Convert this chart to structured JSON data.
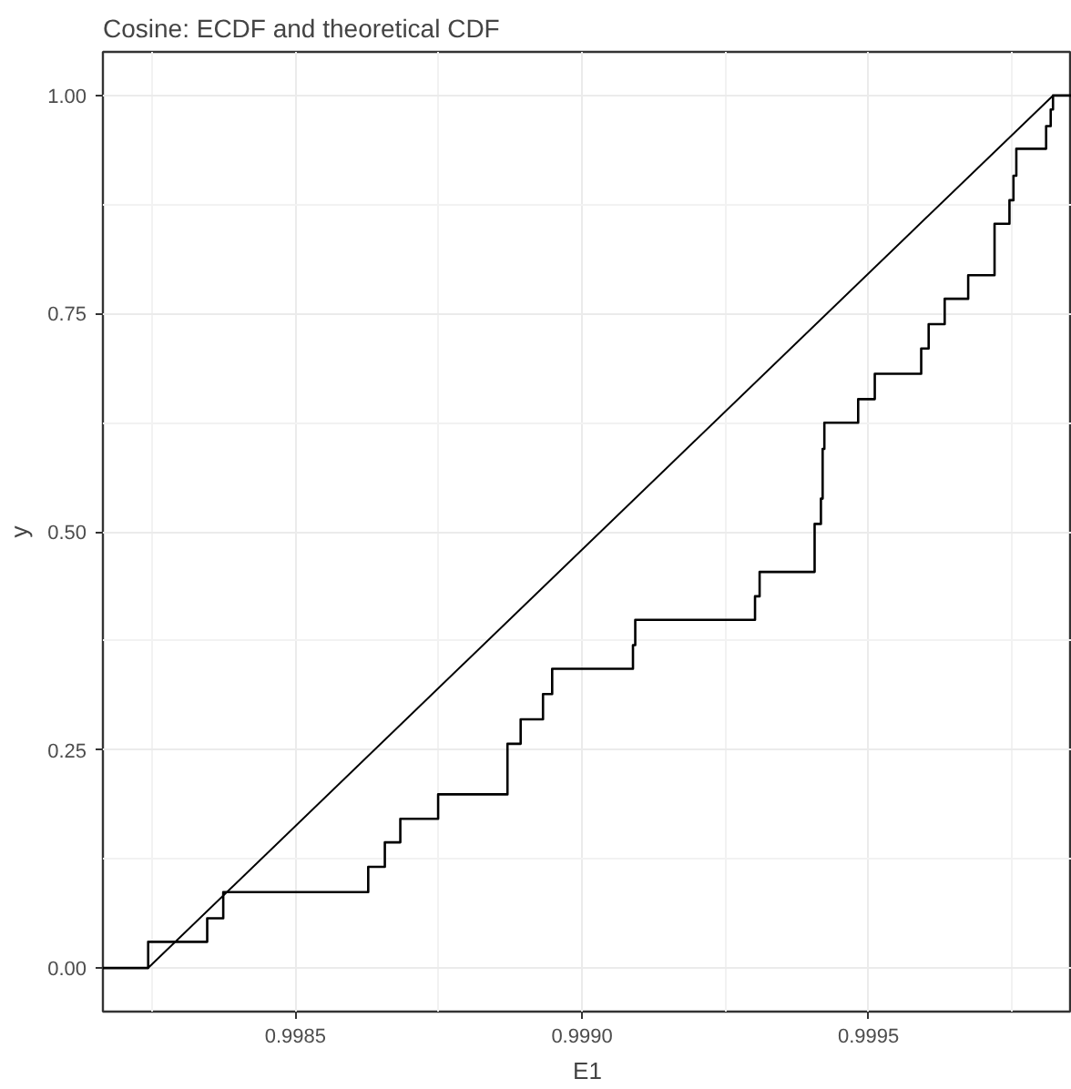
{
  "chart_data": {
    "type": "step",
    "title": "Cosine: ECDF and theoretical CDF",
    "xlabel": "E1",
    "ylabel": "y",
    "xlim": [
      0.998164,
      0.999855
    ],
    "ylim": [
      -0.05,
      1.05
    ],
    "xticks": [
      {
        "value": 0.9985,
        "label": "0.9985"
      },
      {
        "value": 0.999,
        "label": "0.9990"
      },
      {
        "value": 0.9995,
        "label": "0.9995"
      }
    ],
    "yticks": [
      {
        "value": 0,
        "label": "0.00"
      },
      {
        "value": 0.25,
        "label": "0.25"
      },
      {
        "value": 0.5,
        "label": "0.50"
      },
      {
        "value": 0.75,
        "label": "0.75"
      },
      {
        "value": 1,
        "label": "1.00"
      }
    ],
    "grid": true,
    "series": [
      {
        "color": "#000000",
        "x": [
          0.998164,
          0.998243,
          0.998346,
          0.998374,
          0.998627,
          0.998656,
          0.998683,
          0.998749,
          0.99887,
          0.998893,
          0.998932,
          0.998948,
          0.999089,
          0.999093,
          0.999302,
          0.99931,
          0.999406,
          0.999417,
          0.99942,
          0.999423,
          0.999482,
          0.999511,
          0.999592,
          0.999605,
          0.999633,
          0.999674,
          0.99972,
          0.999746,
          0.999753,
          0.999758,
          0.99981,
          0.999818,
          0.999822,
          0.999855
        ],
        "values": [
          0,
          0.03,
          0.057,
          0.087,
          0.116,
          0.144,
          0.171,
          0.199,
          0.257,
          0.285,
          0.314,
          0.343,
          0.37,
          0.399,
          0.426,
          0.454,
          0.509,
          0.538,
          0.595,
          0.625,
          0.652,
          0.681,
          0.71,
          0.738,
          0.767,
          0.794,
          0.853,
          0.88,
          0.908,
          0.939,
          0.965,
          0.984,
          1,
          1
        ]
      },
      {
        "type": "line",
        "color": "#000000",
        "x": [
          0.998243,
          0.999822
        ],
        "values": [
          0,
          1
        ]
      }
    ]
  }
}
